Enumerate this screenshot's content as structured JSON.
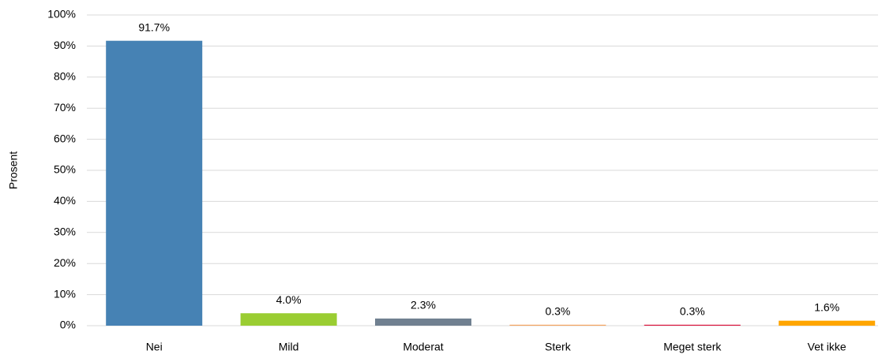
{
  "chart_data": {
    "type": "bar",
    "y_label": "Prosent",
    "categories": [
      "Nei",
      "Mild",
      "Moderat",
      "Sterk",
      "Meget sterk",
      "Vet ikke"
    ],
    "values": [
      91.7,
      4.0,
      2.3,
      0.3,
      0.3,
      1.6
    ],
    "value_labels": [
      "91.7%",
      "4.0%",
      "2.3%",
      "0.3%",
      "0.3%",
      "1.6%"
    ],
    "colors": [
      "#4682b4",
      "#9acd32",
      "#708090",
      "#f4a460",
      "#dc143c",
      "#ffa500"
    ],
    "ylim": [
      0,
      100
    ],
    "yticks": [
      {
        "value": 0,
        "label": "0%"
      },
      {
        "value": 10,
        "label": "10%"
      },
      {
        "value": 20,
        "label": "20%"
      },
      {
        "value": 30,
        "label": "30%"
      },
      {
        "value": 40,
        "label": "40%"
      },
      {
        "value": 50,
        "label": "50%"
      },
      {
        "value": 60,
        "label": "60%"
      },
      {
        "value": 70,
        "label": "70%"
      },
      {
        "value": 80,
        "label": "80%"
      },
      {
        "value": 90,
        "label": "90%"
      },
      {
        "value": 100,
        "label": "100%"
      }
    ],
    "grid": true
  }
}
